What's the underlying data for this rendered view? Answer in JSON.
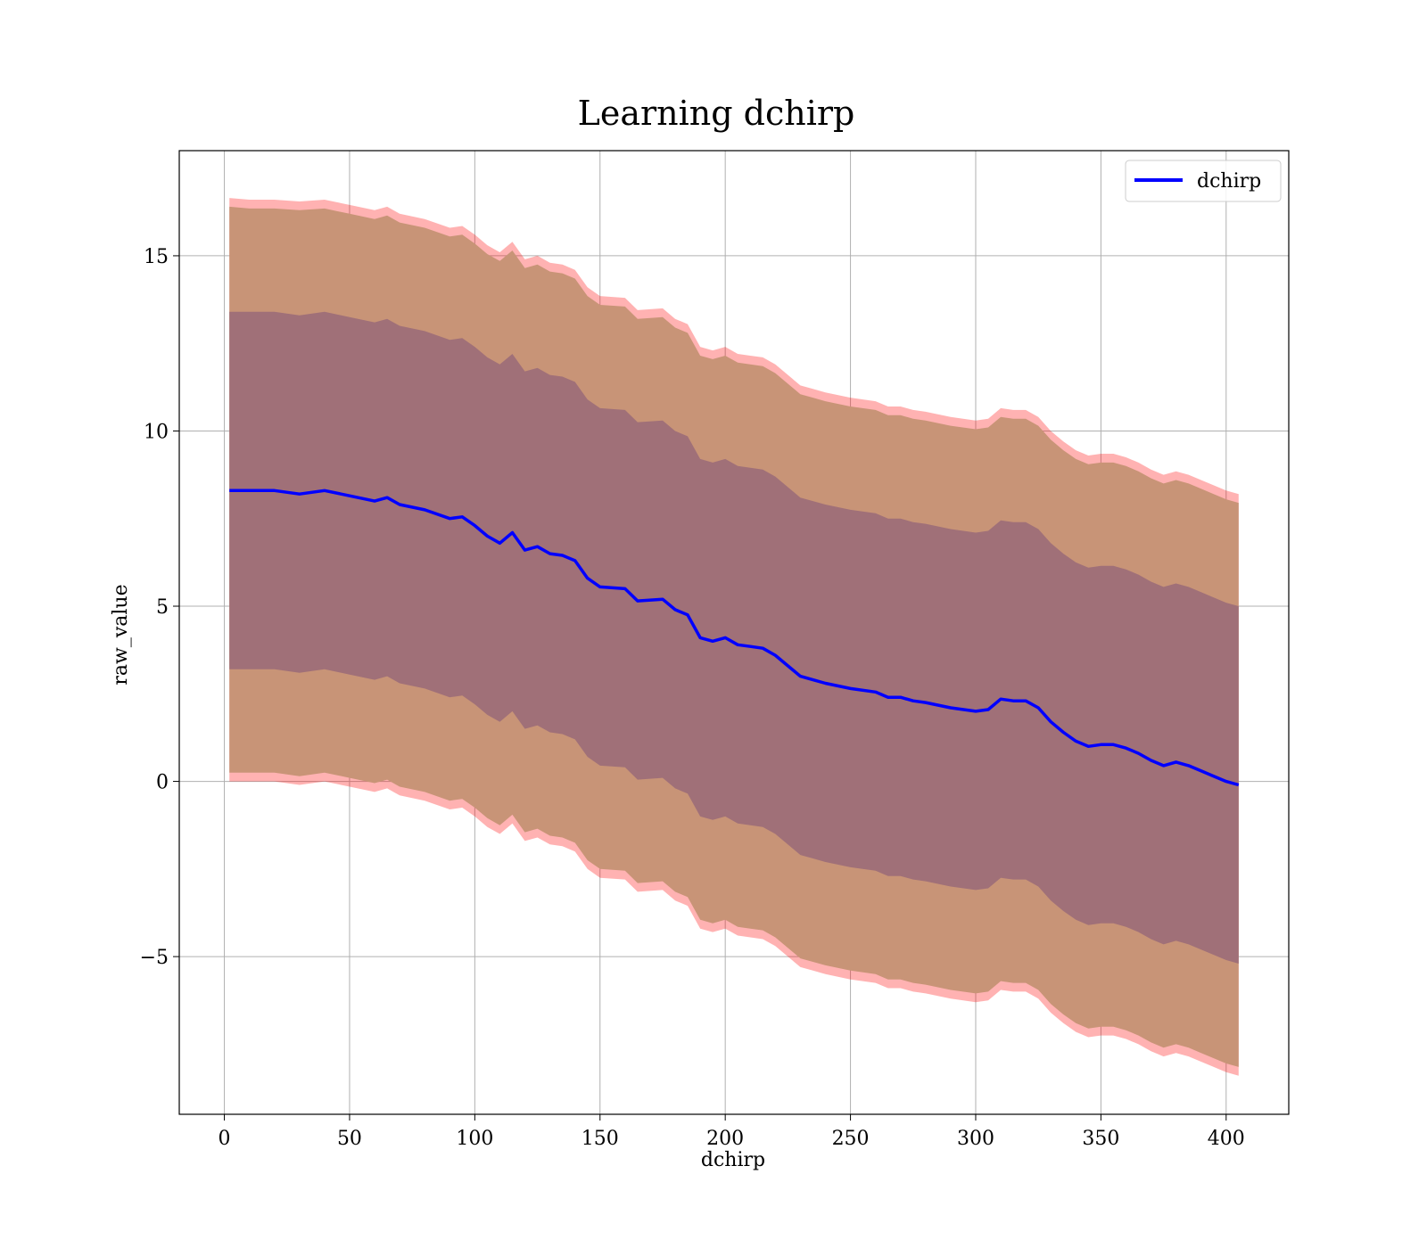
{
  "chart_data": {
    "type": "line",
    "title": "Learning dchirp",
    "xlabel": "dchirp",
    "ylabel": "raw_value",
    "xlim": [
      -18,
      425
    ],
    "ylim": [
      -9.5,
      18
    ],
    "xticks": [
      0,
      50,
      100,
      150,
      200,
      250,
      300,
      350,
      400
    ],
    "yticks": [
      -5,
      0,
      5,
      10,
      15
    ],
    "xtick_labels": [
      "0",
      "50",
      "100",
      "150",
      "200",
      "250",
      "300",
      "350",
      "400"
    ],
    "ytick_labels": [
      "−5",
      "0",
      "5",
      "10",
      "15"
    ],
    "grid": true,
    "legend": {
      "position": "top-right",
      "entries": [
        "dchirp"
      ]
    },
    "colors": {
      "line": "#0000ff",
      "outer_band": "#ff0000",
      "middle_band": "#c89477",
      "inner_band": "#a07078"
    },
    "series": [
      {
        "name": "dchirp",
        "x": [
          2,
          10,
          20,
          30,
          40,
          50,
          60,
          65,
          70,
          80,
          90,
          95,
          100,
          105,
          110,
          115,
          120,
          125,
          130,
          135,
          140,
          145,
          150,
          160,
          165,
          175,
          180,
          185,
          190,
          195,
          200,
          205,
          210,
          215,
          220,
          230,
          235,
          240,
          250,
          260,
          265,
          270,
          275,
          280,
          290,
          300,
          305,
          310,
          315,
          320,
          325,
          330,
          335,
          340,
          345,
          350,
          355,
          360,
          365,
          370,
          375,
          380,
          385,
          390,
          395,
          400,
          405
        ],
        "values": [
          8.3,
          8.3,
          8.3,
          8.2,
          8.3,
          8.15,
          8.0,
          8.1,
          7.9,
          7.75,
          7.5,
          7.55,
          7.3,
          7.0,
          6.8,
          7.1,
          6.6,
          6.7,
          6.5,
          6.45,
          6.3,
          5.8,
          5.55,
          5.5,
          5.15,
          5.2,
          4.9,
          4.75,
          4.1,
          4.0,
          4.1,
          3.9,
          3.85,
          3.8,
          3.6,
          3.0,
          2.9,
          2.8,
          2.65,
          2.55,
          2.4,
          2.4,
          2.3,
          2.25,
          2.1,
          2.0,
          2.05,
          2.35,
          2.3,
          2.3,
          2.1,
          1.7,
          1.4,
          1.15,
          1.0,
          1.05,
          1.05,
          0.95,
          0.8,
          0.6,
          0.45,
          0.55,
          0.45,
          0.3,
          0.15,
          0.0,
          -0.1
        ],
        "upper_outer": [
          16.65,
          16.6,
          16.6,
          16.55,
          16.6,
          16.45,
          16.3,
          16.4,
          16.2,
          16.05,
          15.8,
          15.85,
          15.6,
          15.3,
          15.1,
          15.4,
          14.9,
          15.0,
          14.8,
          14.75,
          14.6,
          14.1,
          13.85,
          13.8,
          13.45,
          13.5,
          13.2,
          13.05,
          12.4,
          12.3,
          12.4,
          12.2,
          12.15,
          12.1,
          11.9,
          11.3,
          11.2,
          11.1,
          10.95,
          10.85,
          10.7,
          10.7,
          10.6,
          10.55,
          10.4,
          10.3,
          10.35,
          10.65,
          10.6,
          10.6,
          10.4,
          10.0,
          9.7,
          9.45,
          9.3,
          9.35,
          9.35,
          9.25,
          9.1,
          8.9,
          8.75,
          8.85,
          8.75,
          8.6,
          8.45,
          8.3,
          8.2
        ],
        "upper_mid": [
          16.4,
          16.35,
          16.35,
          16.3,
          16.35,
          16.2,
          16.05,
          16.15,
          15.95,
          15.8,
          15.55,
          15.6,
          15.35,
          15.05,
          14.85,
          15.15,
          14.65,
          14.75,
          14.55,
          14.5,
          14.35,
          13.85,
          13.6,
          13.55,
          13.2,
          13.25,
          12.95,
          12.8,
          12.15,
          12.05,
          12.15,
          11.95,
          11.9,
          11.85,
          11.65,
          11.05,
          10.95,
          10.85,
          10.7,
          10.6,
          10.45,
          10.45,
          10.35,
          10.3,
          10.15,
          10.05,
          10.1,
          10.4,
          10.35,
          10.35,
          10.15,
          9.75,
          9.45,
          9.2,
          9.05,
          9.1,
          9.1,
          9.0,
          8.85,
          8.65,
          8.5,
          8.6,
          8.5,
          8.35,
          8.2,
          8.05,
          7.95
        ],
        "upper_inner": [
          13.4,
          13.4,
          13.4,
          13.3,
          13.4,
          13.25,
          13.1,
          13.2,
          13.0,
          12.85,
          12.6,
          12.65,
          12.4,
          12.1,
          11.9,
          12.2,
          11.7,
          11.8,
          11.6,
          11.55,
          11.4,
          10.9,
          10.65,
          10.6,
          10.25,
          10.3,
          10.0,
          9.85,
          9.2,
          9.1,
          9.2,
          9.0,
          8.95,
          8.9,
          8.7,
          8.1,
          8.0,
          7.9,
          7.75,
          7.65,
          7.5,
          7.5,
          7.4,
          7.35,
          7.2,
          7.1,
          7.15,
          7.45,
          7.4,
          7.4,
          7.2,
          6.8,
          6.5,
          6.25,
          6.1,
          6.15,
          6.15,
          6.05,
          5.9,
          5.7,
          5.55,
          5.65,
          5.55,
          5.4,
          5.25,
          5.1,
          5.0
        ],
        "lower_inner": [
          3.2,
          3.2,
          3.2,
          3.1,
          3.2,
          3.05,
          2.9,
          3.0,
          2.8,
          2.65,
          2.4,
          2.45,
          2.2,
          1.9,
          1.7,
          2.0,
          1.5,
          1.6,
          1.4,
          1.35,
          1.2,
          0.7,
          0.45,
          0.4,
          0.05,
          0.1,
          -0.2,
          -0.35,
          -1.0,
          -1.1,
          -1.0,
          -1.2,
          -1.25,
          -1.3,
          -1.5,
          -2.1,
          -2.2,
          -2.3,
          -2.45,
          -2.55,
          -2.7,
          -2.7,
          -2.8,
          -2.85,
          -3.0,
          -3.1,
          -3.05,
          -2.75,
          -2.8,
          -2.8,
          -3.0,
          -3.4,
          -3.7,
          -3.95,
          -4.1,
          -4.05,
          -4.05,
          -4.15,
          -4.3,
          -4.5,
          -4.65,
          -4.55,
          -4.65,
          -4.8,
          -4.95,
          -5.1,
          -5.2
        ],
        "lower_mid": [
          0.25,
          0.25,
          0.25,
          0.15,
          0.25,
          0.1,
          -0.05,
          0.05,
          -0.15,
          -0.3,
          -0.55,
          -0.5,
          -0.75,
          -1.05,
          -1.25,
          -0.95,
          -1.45,
          -1.35,
          -1.55,
          -1.6,
          -1.75,
          -2.25,
          -2.5,
          -2.55,
          -2.9,
          -2.85,
          -3.15,
          -3.3,
          -3.95,
          -4.05,
          -3.95,
          -4.15,
          -4.2,
          -4.25,
          -4.45,
          -5.05,
          -5.15,
          -5.25,
          -5.4,
          -5.5,
          -5.65,
          -5.65,
          -5.75,
          -5.8,
          -5.95,
          -6.05,
          -6.0,
          -5.7,
          -5.75,
          -5.75,
          -5.95,
          -6.35,
          -6.65,
          -6.9,
          -7.05,
          -7.0,
          -7.0,
          -7.1,
          -7.25,
          -7.45,
          -7.6,
          -7.5,
          -7.6,
          -7.75,
          -7.9,
          -8.05,
          -8.15
        ],
        "lower_outer": [
          0.0,
          0.0,
          0.0,
          -0.1,
          0.0,
          -0.15,
          -0.3,
          -0.2,
          -0.4,
          -0.55,
          -0.8,
          -0.75,
          -1.0,
          -1.3,
          -1.5,
          -1.2,
          -1.7,
          -1.6,
          -1.8,
          -1.85,
          -2.0,
          -2.5,
          -2.75,
          -2.8,
          -3.15,
          -3.1,
          -3.4,
          -3.55,
          -4.2,
          -4.3,
          -4.2,
          -4.4,
          -4.45,
          -4.5,
          -4.7,
          -5.3,
          -5.4,
          -5.5,
          -5.65,
          -5.75,
          -5.9,
          -5.9,
          -6.0,
          -6.05,
          -6.2,
          -6.3,
          -6.25,
          -5.95,
          -6.0,
          -6.0,
          -6.2,
          -6.6,
          -6.9,
          -7.15,
          -7.3,
          -7.25,
          -7.25,
          -7.35,
          -7.5,
          -7.7,
          -7.85,
          -7.75,
          -7.85,
          -8.0,
          -8.15,
          -8.3,
          -8.4
        ]
      }
    ]
  }
}
